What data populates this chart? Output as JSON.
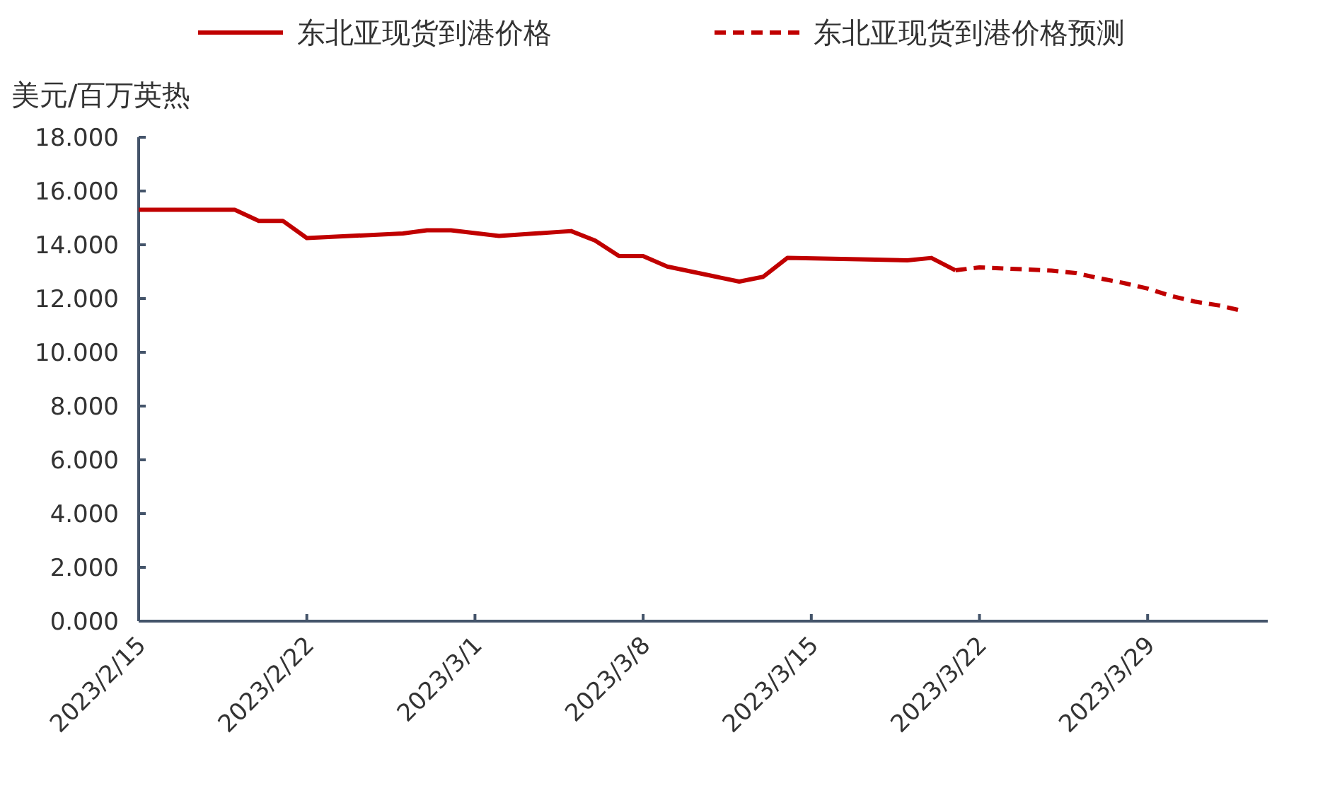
{
  "chart_data": {
    "type": "line",
    "ylabel": "美元/百万英热",
    "legend": "top",
    "grid": false,
    "marker": "none",
    "xlim": [
      "2023-02-15",
      "2023-04-03"
    ],
    "xticks": [
      {
        "value": "2023-02-15",
        "label": "2023/2/15"
      },
      {
        "value": "2023-02-22",
        "label": "2023/2/22"
      },
      {
        "value": "2023-03-01",
        "label": "2023/3/1"
      },
      {
        "value": "2023-03-08",
        "label": "2023/3/8"
      },
      {
        "value": "2023-03-15",
        "label": "2023/3/15"
      },
      {
        "value": "2023-03-22",
        "label": "2023/3/22"
      },
      {
        "value": "2023-03-29",
        "label": "2023/3/29"
      }
    ],
    "ylim": [
      0,
      18
    ],
    "yticks": [
      {
        "value": 0,
        "label": "0.000"
      },
      {
        "value": 2,
        "label": "2.000"
      },
      {
        "value": 4,
        "label": "4.000"
      },
      {
        "value": 6,
        "label": "6.000"
      },
      {
        "value": 8,
        "label": "8.000"
      },
      {
        "value": 10,
        "label": "10.000"
      },
      {
        "value": 12,
        "label": "12.000"
      },
      {
        "value": 14,
        "label": "14.000"
      },
      {
        "value": 16,
        "label": "16.000"
      },
      {
        "value": 18,
        "label": "18.000"
      }
    ],
    "series": [
      {
        "name": "东北亚现货到港价格",
        "color": "#c00000",
        "line_style": "solid",
        "x": [
          "2023-02-15",
          "2023-02-19",
          "2023-02-20",
          "2023-02-21",
          "2023-02-22",
          "2023-02-26",
          "2023-02-27",
          "2023-02-28",
          "2023-03-02",
          "2023-03-05",
          "2023-03-06",
          "2023-03-07",
          "2023-03-08",
          "2023-03-09",
          "2023-03-12",
          "2023-03-13",
          "2023-03-14",
          "2023-03-17",
          "2023-03-19",
          "2023-03-20",
          "2023-03-21"
        ],
        "values": [
          15.3,
          15.3,
          14.89,
          14.89,
          14.25,
          14.42,
          14.54,
          14.54,
          14.33,
          14.51,
          14.16,
          13.58,
          13.58,
          13.19,
          12.63,
          12.81,
          13.51,
          13.46,
          13.42,
          13.51,
          13.05
        ]
      },
      {
        "name": "东北亚现货到港价格预测",
        "color": "#c00000",
        "line_style": "dashed",
        "x": [
          "2023-03-21",
          "2023-03-22",
          "2023-03-25",
          "2023-03-26",
          "2023-03-27",
          "2023-03-28",
          "2023-03-29",
          "2023-03-30",
          "2023-03-31",
          "2023-04-01",
          "2023-04-02"
        ],
        "values": [
          13.05,
          13.16,
          13.04,
          12.95,
          12.75,
          12.58,
          12.37,
          12.09,
          11.88,
          11.74,
          11.53
        ]
      }
    ]
  }
}
